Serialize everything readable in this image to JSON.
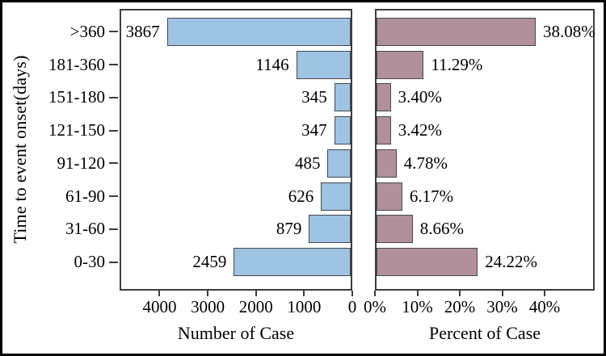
{
  "figure_title": "",
  "y_axis": {
    "title": "Time to event onset(days)"
  },
  "colors": {
    "background": "#ffffff",
    "outer_border": "#000000",
    "frame": "#3a3e42",
    "bar_border": "#44494e",
    "left_bar_fill": "#9fc3e2",
    "right_bar_fill": "#b1909c",
    "text": "#000000"
  },
  "chart_data": {
    "type": "bar",
    "orientation": "horizontal",
    "grid": false,
    "legend": false,
    "ylabel": "Time to event onset(days)",
    "categories": [
      ">360",
      "181-360",
      "151-180",
      "121-150",
      "91-120",
      "61-90",
      "31-60",
      "0-30"
    ],
    "panels": [
      {
        "id": "left",
        "xlabel": "Number of Case",
        "values": [
          3867,
          1146,
          345,
          347,
          485,
          626,
          879,
          2459
        ],
        "data_labels": [
          "3867",
          "1146",
          "345",
          "347",
          "485",
          "626",
          "879",
          "2459"
        ],
        "bar_color": "#9fc3e2",
        "axis": {
          "min": 0,
          "max": 4830,
          "reversed": true,
          "ticks": [
            {
              "label": "4000",
              "value": 4000
            },
            {
              "label": "3000",
              "value": 3000
            },
            {
              "label": "2000",
              "value": 2000
            },
            {
              "label": "1000",
              "value": 1000
            },
            {
              "label": "0",
              "value": 0
            }
          ]
        }
      },
      {
        "id": "right",
        "xlabel": "Percent of Case",
        "values": [
          38.08,
          11.29,
          3.4,
          3.42,
          4.78,
          6.17,
          8.66,
          24.22
        ],
        "data_labels": [
          "38.08%",
          "11.29%",
          "3.40%",
          "3.42%",
          "4.78%",
          "6.17%",
          "8.66%",
          "24.22%"
        ],
        "bar_color": "#b1909c",
        "axis": {
          "min": 0,
          "max": 51.8,
          "reversed": false,
          "ticks": [
            {
              "label": "0%",
              "value": 0
            },
            {
              "label": "10%",
              "value": 10
            },
            {
              "label": "20%",
              "value": 20
            },
            {
              "label": "30%",
              "value": 30
            },
            {
              "label": "40%",
              "value": 40
            }
          ]
        }
      }
    ]
  }
}
